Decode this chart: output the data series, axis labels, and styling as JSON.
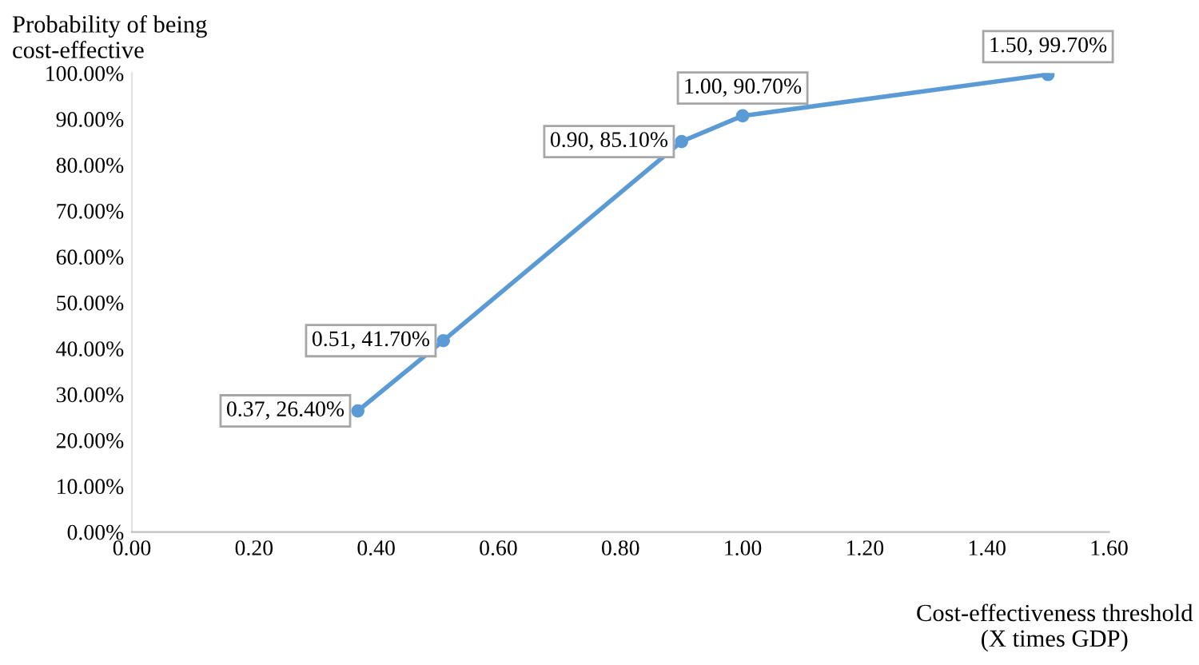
{
  "chart_data": {
    "type": "line",
    "ylabel": "Probability of being\ncost-effective",
    "xlabel": "Cost-effectiveness threshold\n(X times GDP)",
    "x": [
      0.37,
      0.51,
      0.9,
      1.0,
      1.5
    ],
    "series": [
      {
        "color": "#5b9bd5",
        "values": [
          26.4,
          41.7,
          85.1,
          90.7,
          99.7
        ],
        "value_labels": [
          "0.37, 26.40%",
          "0.51, 41.70%",
          "0.90, 85.10%",
          "1.00, 90.70%",
          "1.50, 99.70%"
        ]
      }
    ],
    "marker": "circle",
    "line_style": "solid",
    "grid": false,
    "legend": false,
    "xlim": [
      0,
      1.6
    ],
    "xticks": [
      {
        "value": 0,
        "label": "0.00"
      },
      {
        "value": 0.2,
        "label": "0.20"
      },
      {
        "value": 0.4,
        "label": "0.40"
      },
      {
        "value": 0.6,
        "label": "0.60"
      },
      {
        "value": 0.8,
        "label": "0.80"
      },
      {
        "value": 1.0,
        "label": "1.00"
      },
      {
        "value": 1.2,
        "label": "1.20"
      },
      {
        "value": 1.4,
        "label": "1.40"
      },
      {
        "value": 1.6,
        "label": "1.60"
      }
    ],
    "ylim": [
      0,
      100
    ],
    "yticks": [
      {
        "value": 0,
        "label": "0.00%"
      },
      {
        "value": 10,
        "label": "10.00%"
      },
      {
        "value": 20,
        "label": "20.00%"
      },
      {
        "value": 30,
        "label": "30.00%"
      },
      {
        "value": 40,
        "label": "40.00%"
      },
      {
        "value": 50,
        "label": "50.00%"
      },
      {
        "value": 60,
        "label": "60.00%"
      },
      {
        "value": 70,
        "label": "70.00%"
      },
      {
        "value": 80,
        "label": "80.00%"
      },
      {
        "value": 90,
        "label": "90.00%"
      },
      {
        "value": 100,
        "label": "100.00%"
      }
    ]
  }
}
